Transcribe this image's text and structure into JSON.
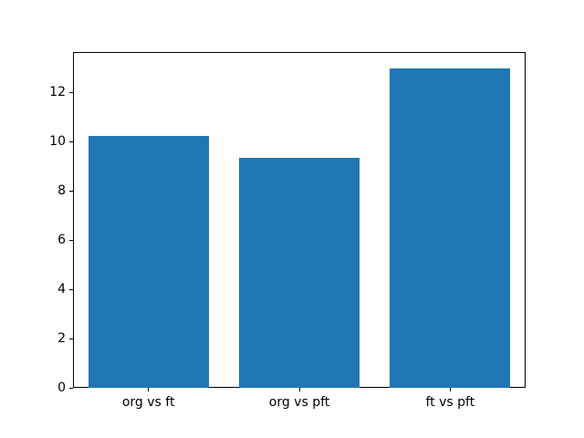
{
  "figure": {
    "background_color": "#ffffff",
    "bar_color": "#1f77b4",
    "axis_color": "#000000",
    "text_color": "#000000"
  },
  "chart_data": {
    "type": "bar",
    "categories": [
      "org vs ft",
      "org vs pft",
      "ft vs pft"
    ],
    "values": [
      10.25,
      9.35,
      13.0
    ],
    "title": "",
    "xlabel": "",
    "ylabel": "",
    "ylim": [
      0,
      13.65
    ],
    "yticks": [
      0,
      2,
      4,
      6,
      8,
      10,
      12
    ],
    "bar_width_fraction": 0.8,
    "grid": false,
    "legend": null
  }
}
